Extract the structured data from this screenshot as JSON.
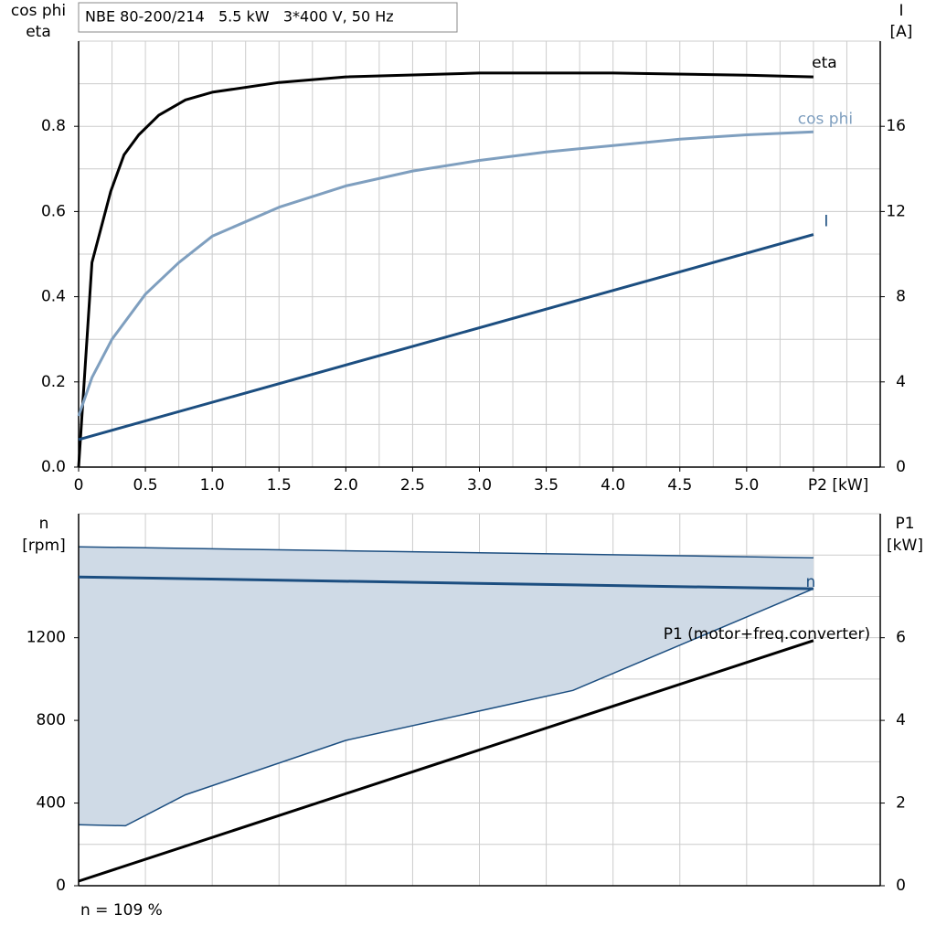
{
  "chart_data": [
    {
      "type": "line",
      "title": "NBE 80-200/214   5.5 kW   3*400 V, 50 Hz",
      "ylabel": [
        "cos phi",
        "eta"
      ],
      "y2label": [
        "I",
        "[A]"
      ],
      "xlim": [
        0,
        6
      ],
      "xticks": [
        0,
        0.5,
        {
          "value": 1,
          "label": "1.0"
        },
        1.5,
        {
          "value": 2,
          "label": "2.0"
        },
        2.5,
        {
          "value": 3,
          "label": "3.0"
        },
        3.5,
        {
          "value": 4,
          "label": "4.0"
        },
        4.5,
        {
          "value": 5,
          "label": "5.0"
        },
        {
          "value": 5.5,
          "label": "P2 [kW]"
        }
      ],
      "ylim": [
        0,
        1
      ],
      "yticks": [
        {
          "value": 0,
          "label": "0.0"
        },
        0.2,
        0.4,
        0.6,
        0.8
      ],
      "y2lim": [
        0,
        20
      ],
      "y2ticks": [
        0,
        4,
        8,
        12,
        16
      ],
      "xgrid": [
        0,
        0.25,
        0.5,
        0.75,
        1,
        1.25,
        1.5,
        1.75,
        2,
        2.25,
        2.5,
        2.75,
        3,
        3.25,
        3.5,
        3.75,
        4,
        4.25,
        4.5,
        4.75,
        5,
        5.25,
        5.5,
        5.75,
        6
      ],
      "ygrid": [
        0,
        0.1,
        0.2,
        0.3,
        0.4,
        0.5,
        0.6,
        0.7,
        0.8,
        0.9,
        1
      ],
      "series": [
        {
          "name": "eta",
          "color": "#000000",
          "x": [
            0,
            0.1,
            0.24,
            0.34,
            0.45,
            0.6,
            0.8,
            1,
            1.5,
            2,
            3,
            4,
            5,
            5.5
          ],
          "values": [
            0,
            0.48,
            0.647,
            0.733,
            0.78,
            0.826,
            0.862,
            0.88,
            0.903,
            0.916,
            0.925,
            0.925,
            0.92,
            0.916
          ]
        },
        {
          "name": "cos phi",
          "color": "#7f9fbf",
          "x": [
            0,
            0.1,
            0.25,
            0.5,
            0.75,
            1,
            1.5,
            2,
            2.5,
            3,
            3.5,
            4,
            4.5,
            5,
            5.5
          ],
          "values": [
            0.12,
            0.21,
            0.3,
            0.406,
            0.48,
            0.542,
            0.61,
            0.66,
            0.695,
            0.72,
            0.74,
            0.755,
            0.77,
            0.78,
            0.787
          ]
        },
        {
          "name": "I",
          "color": "#1c4e80",
          "axis": "y2",
          "x": [
            0,
            5.5
          ],
          "values": [
            1.29,
            10.92
          ]
        }
      ]
    },
    {
      "type": "line",
      "ylabel": [
        "n",
        "[rpm]"
      ],
      "y2label": [
        "P1",
        "[kW]"
      ],
      "xlim": [
        0,
        6
      ],
      "xticks": [],
      "ylim": [
        0,
        1800
      ],
      "yticks": [
        0,
        400,
        800,
        1200
      ],
      "y2lim": [
        0,
        9
      ],
      "y2ticks": [
        0,
        2,
        4,
        6
      ],
      "xgrid": [
        0,
        0.5,
        1,
        1.5,
        2,
        2.5,
        3,
        3.5,
        4,
        4.5,
        5,
        5.5,
        6
      ],
      "ygrid": [
        0,
        200,
        400,
        600,
        800,
        1000,
        1200,
        1400,
        1600,
        1800
      ],
      "band": {
        "color": "#cfdae6",
        "line_color": "#1c4e80",
        "upper": {
          "x": [
            0,
            5.5
          ],
          "values": [
            1640,
            1587
          ]
        },
        "lower": {
          "x": [
            0,
            0.35,
            0.8,
            2,
            3.7,
            5.5
          ],
          "values": [
            295,
            290,
            440,
            703,
            945,
            1437
          ]
        }
      },
      "series": [
        {
          "name": "n",
          "color": "#1c4e80",
          "x": [
            0,
            5.5
          ],
          "values": [
            1494,
            1437
          ]
        },
        {
          "name": "P1 (motor+freq.converter)",
          "color": "#000000",
          "axis": "y2",
          "x": [
            0,
            5.5
          ],
          "values": [
            0.11,
            5.93
          ]
        }
      ],
      "footnote": "n = 109 %"
    }
  ]
}
